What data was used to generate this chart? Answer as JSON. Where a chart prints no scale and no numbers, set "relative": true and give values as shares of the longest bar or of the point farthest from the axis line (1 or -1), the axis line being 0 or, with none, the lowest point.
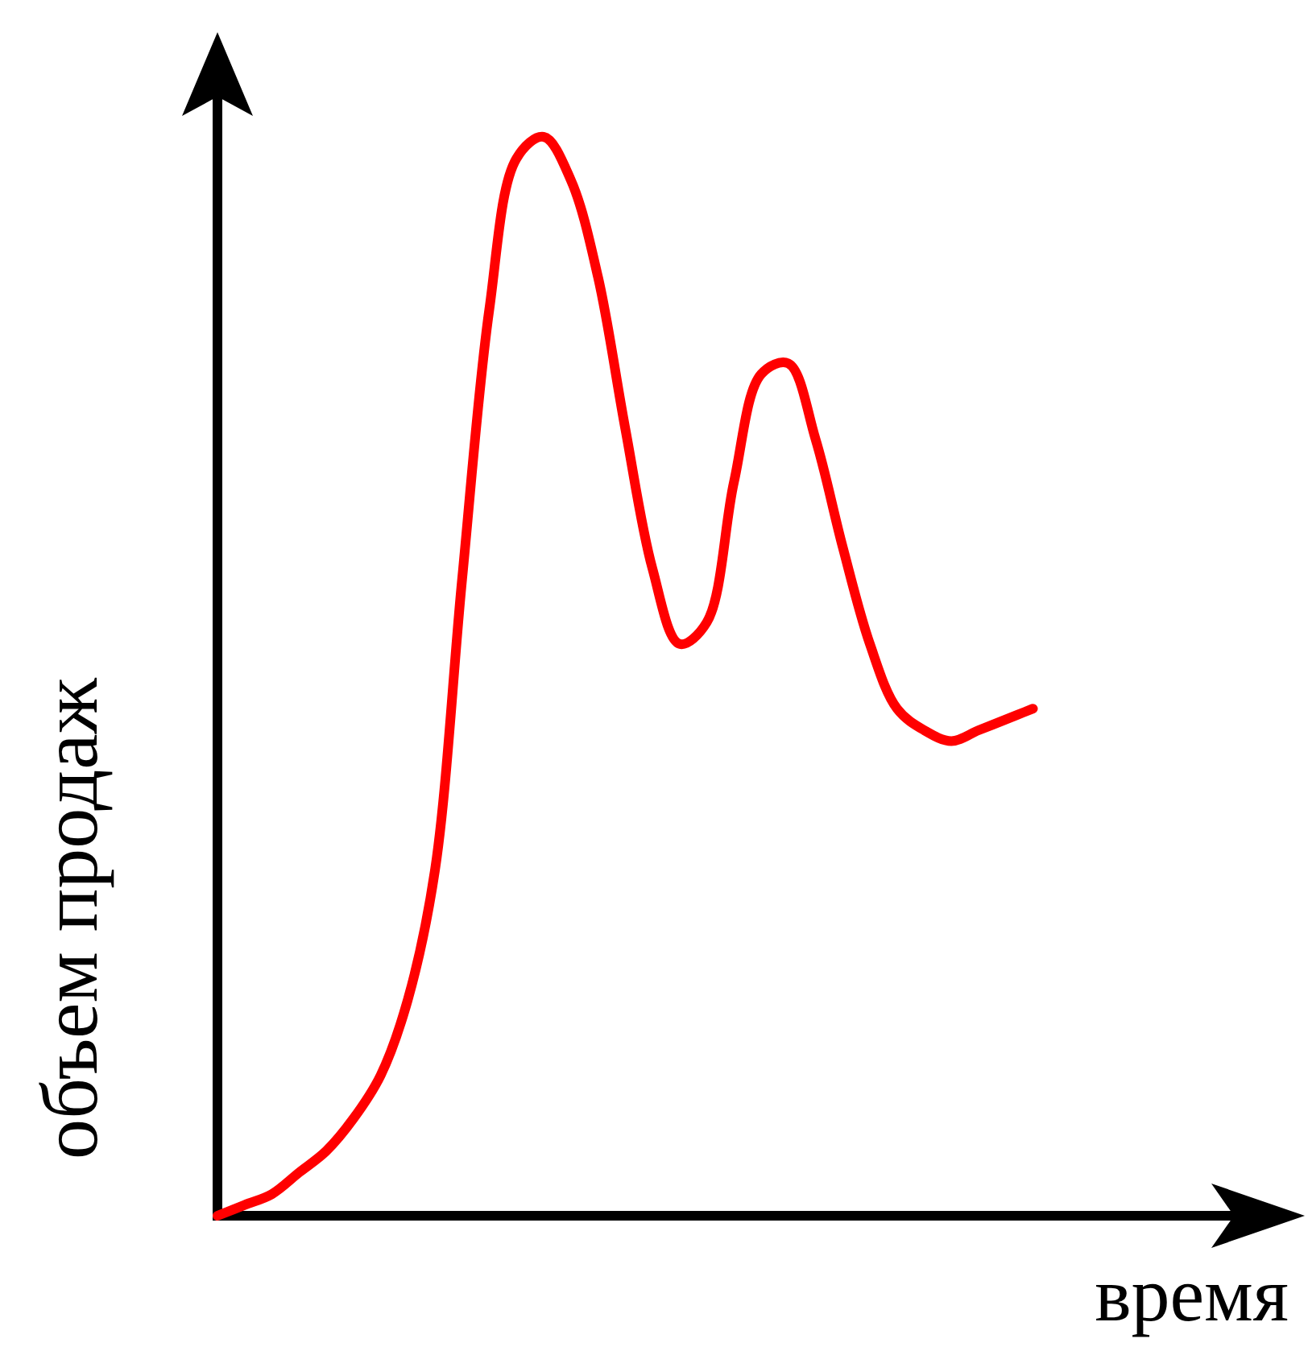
{
  "chart_data": {
    "type": "line",
    "relative": true,
    "xlabel": "время",
    "ylabel": "объем продаж",
    "categories": [
      null,
      null,
      null,
      null,
      null,
      null,
      null,
      null,
      null,
      null,
      null,
      null,
      null,
      null,
      null,
      null,
      null,
      null,
      null,
      null,
      null,
      null,
      null,
      null,
      null,
      null,
      null,
      null,
      null,
      null,
      null,
      null,
      null,
      null,
      null,
      null,
      null,
      null,
      null,
      null,
      null
    ],
    "series": [
      {
        "color": "#ff0000",
        "values": [
          0,
          0.01,
          0.02,
          0.04,
          0.06,
          0.09,
          0.13,
          0.2,
          0.32,
          0.59,
          0.84,
          0.98,
          1,
          0.96,
          0.87,
          0.73,
          0.6,
          0.53,
          0.55,
          0.68,
          0.78,
          0.79,
          0.72,
          0.62,
          0.53,
          0.47,
          0.45,
          0.44,
          0.45,
          0.46,
          0.47,
          null,
          null,
          null,
          null,
          null,
          null,
          null,
          null,
          null,
          null
        ]
      }
    ]
  }
}
